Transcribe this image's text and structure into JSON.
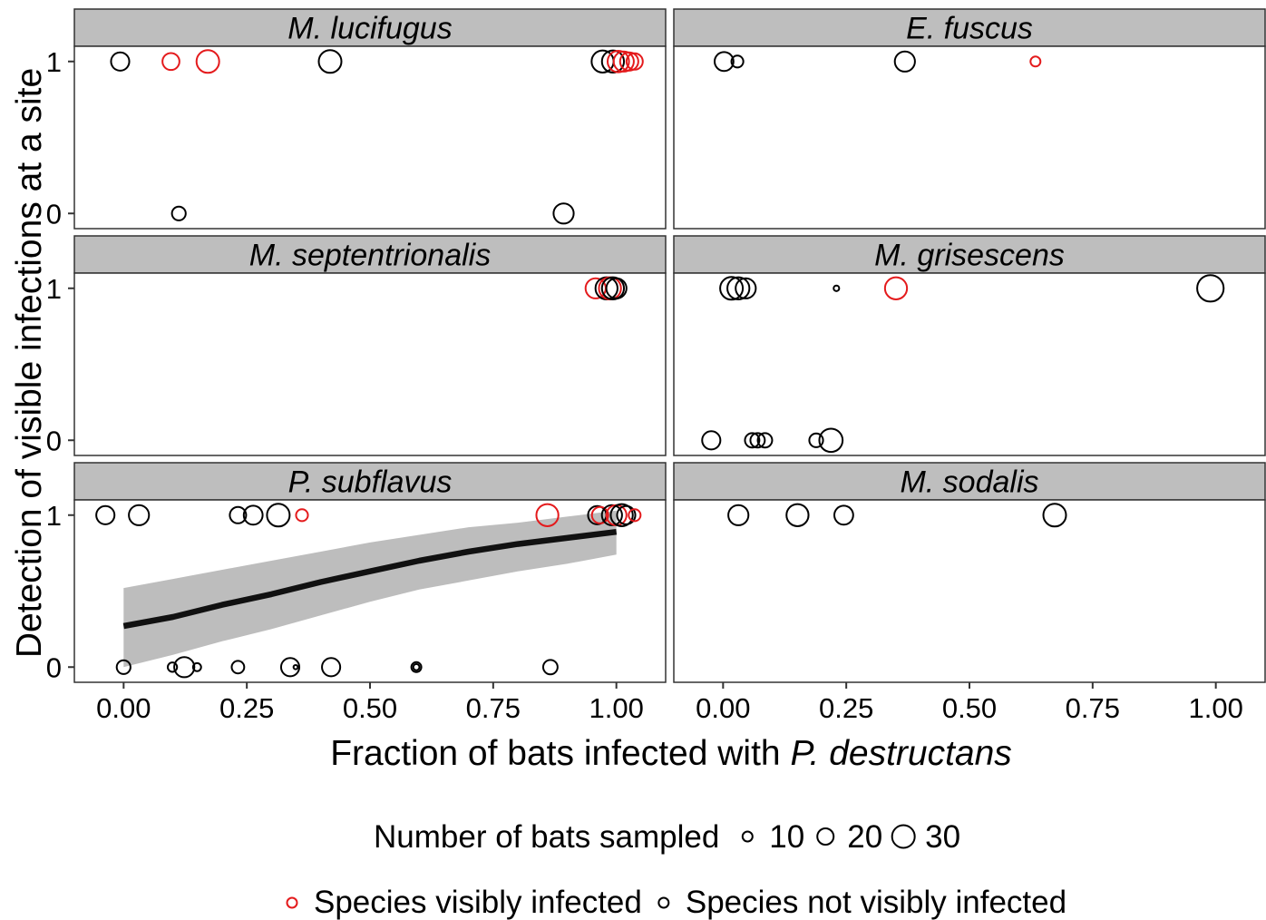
{
  "chart_data": {
    "type": "scatter",
    "ylabel": "Detection of visible infections at a site",
    "xlabel": "Fraction of bats infected with",
    "xlabel_italic": "P. destructans",
    "xlim": [
      -0.1,
      1.1
    ],
    "ylim": [
      -0.1,
      1.1
    ],
    "x_ticks": [
      {
        "value": 0,
        "label": "0.00"
      },
      {
        "value": 0.25,
        "label": "0.25"
      },
      {
        "value": 0.5,
        "label": "0.50"
      },
      {
        "value": 0.75,
        "label": "0.75"
      },
      {
        "value": 1,
        "label": "1.00"
      }
    ],
    "y_ticks": [
      {
        "value": 0,
        "label": "0"
      },
      {
        "value": 1,
        "label": "1"
      }
    ],
    "grid": false,
    "legend_position": "bottom",
    "colors": {
      "visibly_infected": "#E41A1C",
      "not_visibly_infected": "#000000",
      "strip": "#BEBEBE",
      "band": "#BDBDBD",
      "fit_line": "#111111"
    },
    "size_legend": {
      "title": "Number of bats sampled",
      "breaks": [
        {
          "value": 10,
          "label": "10"
        },
        {
          "value": 20,
          "label": "20"
        },
        {
          "value": 30,
          "label": "30"
        }
      ]
    },
    "color_legend": [
      {
        "label": "Species visibly infected",
        "color": "#E41A1C"
      },
      {
        "label": "Species not visibly infected",
        "color": "#000000"
      }
    ],
    "panels": [
      {
        "title": "M. lucifugus",
        "points": [
          {
            "x": -0.007,
            "y": 1,
            "n": 23,
            "visibly_infected": false
          },
          {
            "x": 0.096,
            "y": 1,
            "n": 21,
            "visibly_infected": true
          },
          {
            "x": 0.171,
            "y": 1,
            "n": 30,
            "visibly_infected": true
          },
          {
            "x": 0.419,
            "y": 1,
            "n": 30,
            "visibly_infected": false
          },
          {
            "x": 0.972,
            "y": 1,
            "n": 29,
            "visibly_infected": false
          },
          {
            "x": 0.993,
            "y": 1,
            "n": 29,
            "visibly_infected": false
          },
          {
            "x": 1.004,
            "y": 1,
            "n": 28,
            "visibly_infected": true
          },
          {
            "x": 1.015,
            "y": 1,
            "n": 26,
            "visibly_infected": true
          },
          {
            "x": 1.026,
            "y": 1,
            "n": 23,
            "visibly_infected": true
          },
          {
            "x": 1.037,
            "y": 1,
            "n": 20,
            "visibly_infected": true
          },
          {
            "x": 0.112,
            "y": 0,
            "n": 16,
            "visibly_infected": false
          },
          {
            "x": 0.893,
            "y": 0,
            "n": 26,
            "visibly_infected": false
          }
        ]
      },
      {
        "title": "E. fuscus",
        "points": [
          {
            "x": 0.002,
            "y": 1,
            "n": 24,
            "visibly_infected": false
          },
          {
            "x": 0.029,
            "y": 1,
            "n": 13,
            "visibly_infected": false
          },
          {
            "x": 0.369,
            "y": 1,
            "n": 26,
            "visibly_infected": false
          },
          {
            "x": 0.634,
            "y": 1,
            "n": 10,
            "visibly_infected": true
          }
        ]
      },
      {
        "title": "M. septentrionalis",
        "points": [
          {
            "x": 0.958,
            "y": 1,
            "n": 26,
            "visibly_infected": true
          },
          {
            "x": 0.98,
            "y": 1,
            "n": 29,
            "visibly_infected": false
          },
          {
            "x": 0.987,
            "y": 1,
            "n": 29,
            "visibly_infected": true
          },
          {
            "x": 0.993,
            "y": 1,
            "n": 29,
            "visibly_infected": false
          },
          {
            "x": 1.0,
            "y": 1,
            "n": 26,
            "visibly_infected": false
          }
        ]
      },
      {
        "title": "M. grisescens",
        "points": [
          {
            "x": 0.017,
            "y": 1,
            "n": 30,
            "visibly_infected": false
          },
          {
            "x": 0.031,
            "y": 1,
            "n": 29,
            "visibly_infected": false
          },
          {
            "x": 0.046,
            "y": 1,
            "n": 26,
            "visibly_infected": false
          },
          {
            "x": 0.23,
            "y": 1,
            "n": 3,
            "visibly_infected": false
          },
          {
            "x": 0.351,
            "y": 1,
            "n": 29,
            "visibly_infected": true
          },
          {
            "x": 0.989,
            "y": 1,
            "n": 36,
            "visibly_infected": false
          },
          {
            "x": -0.024,
            "y": 0,
            "n": 23,
            "visibly_infected": false
          },
          {
            "x": 0.059,
            "y": 0,
            "n": 17,
            "visibly_infected": false
          },
          {
            "x": 0.07,
            "y": 0,
            "n": 17,
            "visibly_infected": false
          },
          {
            "x": 0.085,
            "y": 0,
            "n": 17,
            "visibly_infected": false
          },
          {
            "x": 0.189,
            "y": 0,
            "n": 16,
            "visibly_infected": false
          },
          {
            "x": 0.219,
            "y": 0,
            "n": 31,
            "visibly_infected": false
          }
        ]
      },
      {
        "title": "P. subflavus",
        "points": [
          {
            "x": -0.037,
            "y": 1,
            "n": 23,
            "visibly_infected": false
          },
          {
            "x": 0.031,
            "y": 1,
            "n": 26,
            "visibly_infected": false
          },
          {
            "x": 0.232,
            "y": 1,
            "n": 20,
            "visibly_infected": false
          },
          {
            "x": 0.263,
            "y": 1,
            "n": 24,
            "visibly_infected": false
          },
          {
            "x": 0.314,
            "y": 1,
            "n": 30,
            "visibly_infected": false
          },
          {
            "x": 0.362,
            "y": 1,
            "n": 13,
            "visibly_infected": true
          },
          {
            "x": 0.86,
            "y": 1,
            "n": 29,
            "visibly_infected": true
          },
          {
            "x": 0.961,
            "y": 1,
            "n": 23,
            "visibly_infected": false
          },
          {
            "x": 0.967,
            "y": 1,
            "n": 20,
            "visibly_infected": true
          },
          {
            "x": 0.991,
            "y": 1,
            "n": 26,
            "visibly_infected": false
          },
          {
            "x": 1.0,
            "y": 1,
            "n": 26,
            "visibly_infected": true
          },
          {
            "x": 1.011,
            "y": 1,
            "n": 29,
            "visibly_infected": false
          },
          {
            "x": 1.02,
            "y": 1,
            "n": 23,
            "visibly_infected": false
          },
          {
            "x": 1.037,
            "y": 1,
            "n": 13,
            "visibly_infected": true
          },
          {
            "x": 0.0,
            "y": 0,
            "n": 16,
            "visibly_infected": false
          },
          {
            "x": 0.099,
            "y": 0,
            "n": 9,
            "visibly_infected": false
          },
          {
            "x": 0.123,
            "y": 0,
            "n": 26,
            "visibly_infected": false
          },
          {
            "x": 0.149,
            "y": 0,
            "n": 7,
            "visibly_infected": false
          },
          {
            "x": 0.232,
            "y": 0,
            "n": 14,
            "visibly_infected": false
          },
          {
            "x": 0.338,
            "y": 0,
            "n": 23,
            "visibly_infected": false
          },
          {
            "x": 0.349,
            "y": 0,
            "n": 1,
            "visibly_infected": false
          },
          {
            "x": 0.421,
            "y": 0,
            "n": 23,
            "visibly_infected": false
          },
          {
            "x": 0.594,
            "y": 0,
            "n": 10,
            "visibly_infected": false
          },
          {
            "x": 0.594,
            "y": 0,
            "n": 4,
            "visibly_infected": false
          },
          {
            "x": 0.866,
            "y": 0,
            "n": 17,
            "visibly_infected": false
          }
        ],
        "fit": {
          "x": [
            0,
            0.1,
            0.2,
            0.3,
            0.4,
            0.5,
            0.6,
            0.7,
            0.8,
            0.9,
            1.0
          ],
          "y": [
            0.27,
            0.33,
            0.41,
            0.48,
            0.56,
            0.63,
            0.7,
            0.76,
            0.81,
            0.85,
            0.89
          ],
          "lower": [
            0.0,
            0.08,
            0.17,
            0.25,
            0.34,
            0.43,
            0.51,
            0.57,
            0.63,
            0.68,
            0.74
          ],
          "upper": [
            0.52,
            0.58,
            0.64,
            0.7,
            0.76,
            0.82,
            0.87,
            0.92,
            0.95,
            0.99,
            1.03
          ]
        }
      },
      {
        "title": "M. sodalis",
        "points": [
          {
            "x": 0.031,
            "y": 1,
            "n": 26,
            "visibly_infected": false
          },
          {
            "x": 0.151,
            "y": 1,
            "n": 29,
            "visibly_infected": false
          },
          {
            "x": 0.245,
            "y": 1,
            "n": 24,
            "visibly_infected": false
          },
          {
            "x": 0.673,
            "y": 1,
            "n": 30,
            "visibly_infected": false
          }
        ]
      }
    ]
  }
}
